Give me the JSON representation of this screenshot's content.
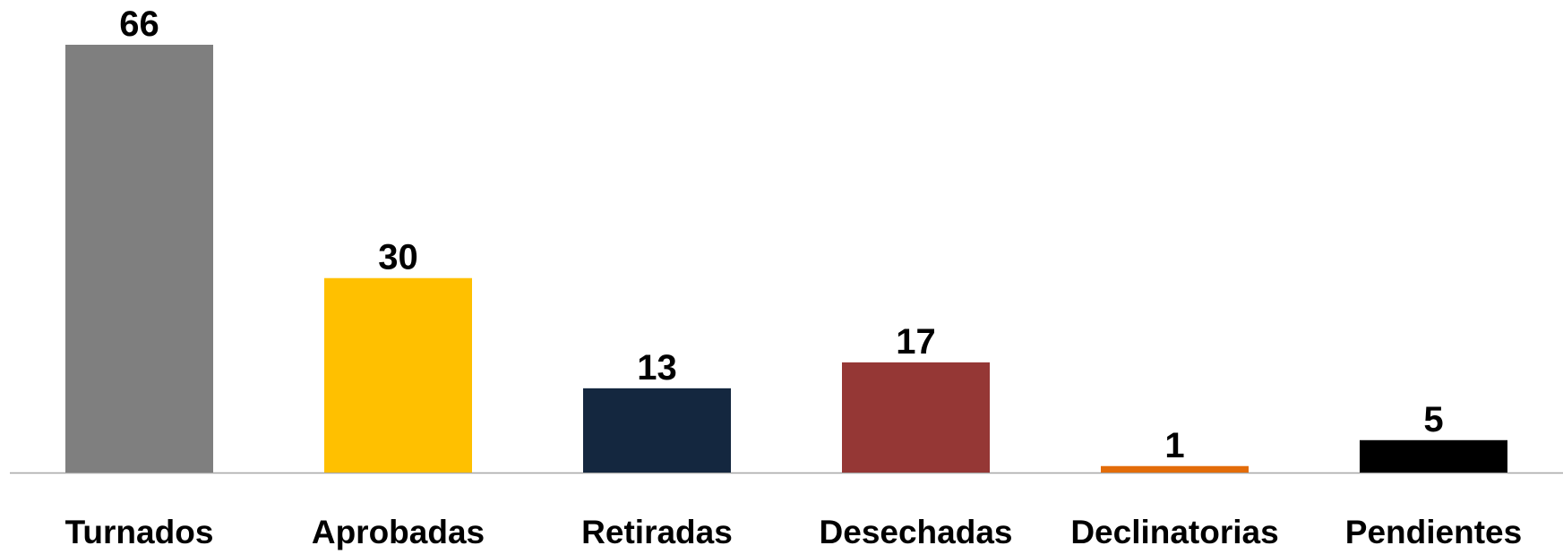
{
  "chart_data": {
    "type": "bar",
    "categories": [
      "Turnados",
      "Aprobadas",
      "Retiradas",
      "Desechadas",
      "Declinatorias",
      "Pendientes"
    ],
    "values": [
      66,
      30,
      13,
      17,
      1,
      5
    ],
    "colors": [
      "#7f7f7f",
      "#ffc000",
      "#14273f",
      "#953735",
      "#e36c09",
      "#000000"
    ]
  }
}
